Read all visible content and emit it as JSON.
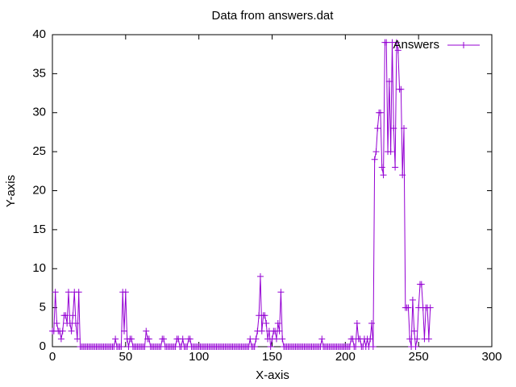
{
  "chart_data": {
    "type": "line",
    "title": "Data from answers.dat",
    "xlabel": "X-axis",
    "ylabel": "Y-axis",
    "xlim": [
      0,
      300
    ],
    "xticks": [
      0,
      50,
      100,
      150,
      200,
      250,
      300
    ],
    "ylim": [
      0,
      40
    ],
    "yticks": [
      0,
      5,
      10,
      15,
      20,
      25,
      30,
      35,
      40
    ],
    "grid": false,
    "legend": "top-right",
    "x": [
      0,
      1,
      2,
      3,
      4,
      5,
      6,
      7,
      8,
      9,
      10,
      11,
      12,
      13,
      14,
      15,
      16,
      17,
      18,
      19,
      20,
      21,
      22,
      23,
      24,
      25,
      26,
      27,
      28,
      29,
      30,
      31,
      32,
      33,
      34,
      35,
      36,
      37,
      38,
      39,
      40,
      41,
      42,
      43,
      44,
      45,
      46,
      47,
      48,
      49,
      50,
      51,
      52,
      53,
      54,
      55,
      56,
      57,
      58,
      59,
      60,
      61,
      62,
      63,
      64,
      65,
      66,
      67,
      68,
      69,
      70,
      71,
      72,
      73,
      74,
      75,
      76,
      77,
      78,
      79,
      80,
      81,
      82,
      83,
      84,
      85,
      86,
      87,
      88,
      89,
      90,
      91,
      92,
      93,
      94,
      95,
      96,
      97,
      98,
      99,
      100,
      101,
      102,
      103,
      104,
      105,
      106,
      107,
      108,
      109,
      110,
      111,
      112,
      113,
      114,
      115,
      116,
      117,
      118,
      119,
      120,
      121,
      122,
      123,
      124,
      125,
      126,
      127,
      128,
      129,
      130,
      131,
      132,
      133,
      134,
      135,
      136,
      137,
      138,
      139,
      140,
      141,
      142,
      143,
      144,
      145,
      146,
      147,
      148,
      149,
      150,
      151,
      152,
      153,
      154,
      155,
      156,
      157,
      158,
      159,
      160,
      161,
      162,
      163,
      164,
      165,
      166,
      167,
      168,
      169,
      170,
      171,
      172,
      173,
      174,
      175,
      176,
      177,
      178,
      179,
      180,
      181,
      182,
      183,
      184,
      185,
      186,
      187,
      188,
      189,
      190,
      191,
      192,
      193,
      194,
      195,
      196,
      197,
      198,
      199,
      200,
      201,
      202,
      203,
      204,
      205,
      206,
      207,
      208,
      209,
      210,
      211,
      212,
      213,
      214,
      215,
      216,
      217,
      218,
      219,
      220,
      221,
      222,
      223,
      224,
      225,
      226,
      227,
      228,
      229,
      230,
      231,
      232,
      233,
      234,
      235,
      236,
      237,
      238,
      239,
      240,
      241,
      242,
      243,
      244,
      245,
      246,
      247,
      248,
      249,
      250,
      251,
      252,
      253,
      254,
      255,
      256,
      257,
      258
    ],
    "series": [
      {
        "name": "Answers",
        "color": "#9400d3",
        "values": [
          2,
          2,
          7,
          3,
          2,
          2,
          1,
          2,
          4,
          4,
          3,
          7,
          3,
          2,
          4,
          7,
          3,
          1,
          7,
          0,
          0,
          0,
          0,
          0,
          0,
          0,
          0,
          0,
          0,
          0,
          0,
          0,
          0,
          0,
          0,
          0,
          0,
          0,
          0,
          0,
          0,
          0,
          0,
          1,
          0,
          0,
          0,
          0,
          7,
          2,
          7,
          1,
          0,
          1,
          1,
          0,
          0,
          0,
          0,
          0,
          0,
          0,
          0,
          0,
          2,
          1,
          1,
          0,
          0,
          0,
          0,
          0,
          0,
          0,
          0,
          1,
          1,
          0,
          0,
          0,
          0,
          0,
          0,
          0,
          0,
          1,
          1,
          0,
          0,
          1,
          0,
          0,
          0,
          1,
          1,
          0,
          0,
          0,
          0,
          0,
          0,
          0,
          0,
          0,
          0,
          0,
          0,
          0,
          0,
          0,
          0,
          0,
          0,
          0,
          0,
          0,
          0,
          0,
          0,
          0,
          0,
          0,
          0,
          0,
          0,
          0,
          0,
          0,
          0,
          0,
          0,
          0,
          0,
          0,
          0,
          1,
          0,
          0,
          0,
          1,
          2,
          4,
          9,
          2,
          4,
          4,
          3,
          1,
          2,
          0,
          1,
          2,
          2,
          1,
          3,
          2,
          7,
          1,
          0,
          0,
          0,
          0,
          0,
          0,
          0,
          0,
          0,
          0,
          0,
          0,
          0,
          0,
          0,
          0,
          0,
          0,
          0,
          0,
          0,
          0,
          0,
          0,
          0,
          0,
          1,
          0,
          0,
          0,
          0,
          0,
          0,
          0,
          0,
          0,
          0,
          0,
          0,
          0,
          0,
          0,
          0,
          0,
          0,
          0,
          1,
          1,
          0,
          0,
          3,
          1,
          1,
          0,
          0,
          1,
          0,
          1,
          0,
          1,
          3,
          0,
          24,
          25,
          28,
          30,
          30,
          23,
          22,
          39,
          39,
          25,
          34,
          25,
          39,
          28,
          23,
          39,
          38,
          33,
          33,
          22,
          28,
          5,
          5,
          5,
          1,
          0,
          6,
          2,
          0,
          1,
          5,
          8,
          8,
          5,
          1,
          5,
          5,
          1,
          5
        ]
      }
    ]
  }
}
